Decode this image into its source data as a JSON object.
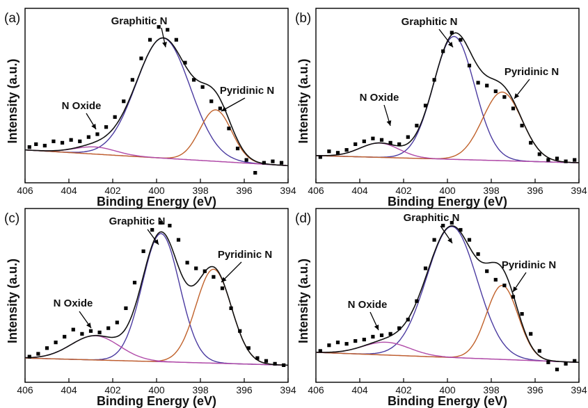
{
  "chart_data": [
    {
      "panel": "(a)",
      "type": "scatter",
      "xlabel": "Binding Energy (eV)",
      "ylabel": "Intensity (a.u.)",
      "xlim": [
        406,
        394
      ],
      "x_reversed": true,
      "xticks": [
        "406",
        "404",
        "402",
        "400",
        "398",
        "396",
        "394"
      ],
      "annotations": [
        "Graphitic N",
        "Pyridinic N",
        "N Oxide"
      ],
      "components": [
        {
          "name": "Graphitic N",
          "center": 399.7,
          "fwhm": 2.9,
          "height": 0.84
        },
        {
          "name": "Pyridinic N",
          "center": 397.3,
          "fwhm": 1.7,
          "height": 0.36
        },
        {
          "name": "N Oxide",
          "center": 402.8,
          "fwhm": 2.2,
          "height": 0.05
        }
      ],
      "baseline": [
        0.11,
        0.0
      ],
      "points_x": [
        405.8,
        405.5,
        405.1,
        404.7,
        404.3,
        403.9,
        403.5,
        403.1,
        402.7,
        402.3,
        401.9,
        401.5,
        401.1,
        400.7,
        400.3,
        399.9,
        399.5,
        399.1,
        398.7,
        398.3,
        397.9,
        397.5,
        397.1,
        396.7,
        396.3,
        395.9,
        395.5,
        395.1,
        394.7,
        394.3
      ],
      "points_y": [
        0.13,
        0.15,
        0.14,
        0.17,
        0.16,
        0.18,
        0.17,
        0.2,
        0.22,
        0.27,
        0.34,
        0.45,
        0.6,
        0.75,
        0.88,
        0.97,
        0.95,
        0.88,
        0.72,
        0.6,
        0.55,
        0.45,
        0.4,
        0.26,
        0.12,
        0.04,
        -0.05,
        0.02,
        0.03,
        0.02
      ]
    },
    {
      "panel": "(b)",
      "type": "scatter",
      "xlabel": "Binding Energy (eV)",
      "ylabel": "Intensity (a.u.)",
      "xlim": [
        406,
        394
      ],
      "x_reversed": true,
      "xticks": [
        "406",
        "404",
        "402",
        "400",
        "398",
        "396",
        "394"
      ],
      "annotations": [
        "Graphitic N",
        "Pyridinic N",
        "N Oxide"
      ],
      "components": [
        {
          "name": "Graphitic N",
          "center": 399.7,
          "fwhm": 2.2,
          "height": 0.86
        },
        {
          "name": "Pyridinic N",
          "center": 397.5,
          "fwhm": 2.1,
          "height": 0.48
        },
        {
          "name": "N Oxide",
          "center": 403.1,
          "fwhm": 2.1,
          "height": 0.1
        }
      ],
      "baseline": [
        0.07,
        0.02
      ],
      "points_x": [
        405.8,
        405.4,
        405.0,
        404.6,
        404.2,
        403.8,
        403.4,
        403.0,
        402.6,
        402.2,
        401.8,
        401.4,
        401.0,
        400.6,
        400.2,
        399.8,
        399.4,
        399.0,
        398.6,
        398.2,
        397.8,
        397.4,
        397.0,
        396.6,
        396.2,
        395.8,
        395.4,
        395.0,
        394.6,
        394.2
      ],
      "points_y": [
        0.06,
        0.1,
        0.09,
        0.11,
        0.15,
        0.17,
        0.19,
        0.18,
        0.16,
        0.15,
        0.2,
        0.28,
        0.42,
        0.6,
        0.8,
        0.93,
        0.88,
        0.7,
        0.58,
        0.56,
        0.52,
        0.48,
        0.4,
        0.28,
        0.16,
        0.08,
        0.04,
        0.05,
        0.03,
        0.04
      ]
    },
    {
      "panel": "(c)",
      "type": "scatter",
      "xlabel": "Binding Energy (eV)",
      "ylabel": "Intensity (a.u.)",
      "xlim": [
        406,
        394
      ],
      "x_reversed": true,
      "xticks": [
        "406",
        "404",
        "402",
        "400",
        "398",
        "396",
        "394"
      ],
      "annotations": [
        "Graphitic N",
        "Pyridinic N",
        "N Oxide"
      ],
      "components": [
        {
          "name": "Graphitic N",
          "center": 399.8,
          "fwhm": 2.0,
          "height": 0.9
        },
        {
          "name": "Pyridinic N",
          "center": 397.4,
          "fwhm": 1.9,
          "height": 0.66
        },
        {
          "name": "N Oxide",
          "center": 402.8,
          "fwhm": 2.6,
          "height": 0.17
        }
      ],
      "baseline": [
        0.05,
        0.0
      ],
      "points_x": [
        405.8,
        405.4,
        405.0,
        404.6,
        404.2,
        403.8,
        403.4,
        403.0,
        402.6,
        402.2,
        401.8,
        401.4,
        401.0,
        400.6,
        400.2,
        399.8,
        399.4,
        399.0,
        398.6,
        398.2,
        397.8,
        397.4,
        397.0,
        396.6,
        396.2,
        395.8,
        395.4,
        395.0,
        394.6,
        394.2
      ],
      "points_y": [
        0.06,
        0.08,
        0.12,
        0.16,
        0.2,
        0.25,
        0.22,
        0.24,
        0.23,
        0.26,
        0.3,
        0.4,
        0.58,
        0.8,
        0.95,
        1.0,
        0.98,
        0.88,
        0.72,
        0.68,
        0.66,
        0.62,
        0.54,
        0.4,
        0.24,
        0.12,
        0.05,
        0.03,
        0.01,
        0.0
      ]
    },
    {
      "panel": "(d)",
      "type": "scatter",
      "xlabel": "Binding Energy (eV)",
      "ylabel": "Intensity (a.u.)",
      "xlim": [
        406,
        394
      ],
      "x_reversed": true,
      "xticks": [
        "406",
        "404",
        "402",
        "400",
        "398",
        "396",
        "394"
      ],
      "annotations": [
        "Graphitic N",
        "Pyridinic N",
        "N Oxide"
      ],
      "components": [
        {
          "name": "Graphitic N",
          "center": 399.8,
          "fwhm": 2.7,
          "height": 0.92
        },
        {
          "name": "Pyridinic N",
          "center": 397.5,
          "fwhm": 1.7,
          "height": 0.52
        },
        {
          "name": "N Oxide",
          "center": 402.8,
          "fwhm": 2.5,
          "height": 0.09
        }
      ],
      "baseline": [
        0.09,
        0.02
      ],
      "points_x": [
        405.8,
        405.4,
        405.0,
        404.6,
        404.2,
        403.8,
        403.4,
        403.0,
        402.6,
        402.2,
        401.8,
        401.4,
        401.0,
        400.6,
        400.2,
        399.8,
        399.4,
        399.0,
        398.6,
        398.2,
        397.8,
        397.4,
        397.0,
        396.6,
        396.2,
        395.8,
        395.4,
        395.0,
        394.6,
        394.2
      ],
      "points_y": [
        0.1,
        0.14,
        0.16,
        0.15,
        0.17,
        0.18,
        0.2,
        0.21,
        0.22,
        0.26,
        0.32,
        0.45,
        0.68,
        0.88,
        0.98,
        1.0,
        0.95,
        0.88,
        0.78,
        0.66,
        0.6,
        0.56,
        0.48,
        0.36,
        0.22,
        0.1,
        0.02,
        -0.03,
        0.01,
        0.03
      ]
    }
  ],
  "colors": {
    "envelope": "#111111",
    "points": "#000000",
    "Graphitic N": "#4a3aa0",
    "Pyridinic N": "#c0612a",
    "N Oxide": "#b04aa8",
    "baseline": "#b04aa8"
  }
}
